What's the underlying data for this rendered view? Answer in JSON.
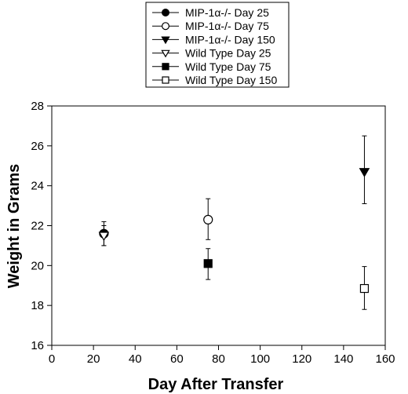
{
  "chart_data": {
    "type": "scatter",
    "title": "",
    "xlabel": "Day After Transfer",
    "ylabel": "Weight in Grams",
    "xlim": [
      0,
      160
    ],
    "ylim": [
      16,
      28
    ],
    "xticks": [
      0,
      20,
      40,
      60,
      80,
      100,
      120,
      140,
      160
    ],
    "yticks": [
      16,
      18,
      20,
      22,
      24,
      26,
      28
    ],
    "grid": false,
    "legend_position": "top-center",
    "series": [
      {
        "name": "MIP-1α-/- Day 25",
        "marker": "circle",
        "filled": true,
        "x": [
          25
        ],
        "y": [
          21.6
        ],
        "err_low": [
          21.0
        ],
        "err_high": [
          22.2
        ]
      },
      {
        "name": "MIP-1α-/- Day 75",
        "marker": "circle",
        "filled": false,
        "x": [
          75
        ],
        "y": [
          22.3
        ],
        "err_low": [
          21.3
        ],
        "err_high": [
          23.35
        ]
      },
      {
        "name": "MIP-1α-/- Day 150",
        "marker": "triangle-down",
        "filled": true,
        "x": [
          150
        ],
        "y": [
          24.7
        ],
        "err_low": [
          23.1
        ],
        "err_high": [
          26.5
        ]
      },
      {
        "name": "Wild Type Day 25",
        "marker": "triangle-down",
        "filled": false,
        "x": [
          25
        ],
        "y": [
          21.5
        ],
        "err_low": [
          21.0
        ],
        "err_high": [
          22.0
        ]
      },
      {
        "name": "Wild Type Day 75",
        "marker": "square",
        "filled": true,
        "x": [
          75
        ],
        "y": [
          20.1
        ],
        "err_low": [
          19.3
        ],
        "err_high": [
          20.85
        ]
      },
      {
        "name": "Wild Type Day 150",
        "marker": "square",
        "filled": false,
        "x": [
          150
        ],
        "y": [
          18.85
        ],
        "err_low": [
          17.8
        ],
        "err_high": [
          19.95
        ]
      }
    ]
  }
}
